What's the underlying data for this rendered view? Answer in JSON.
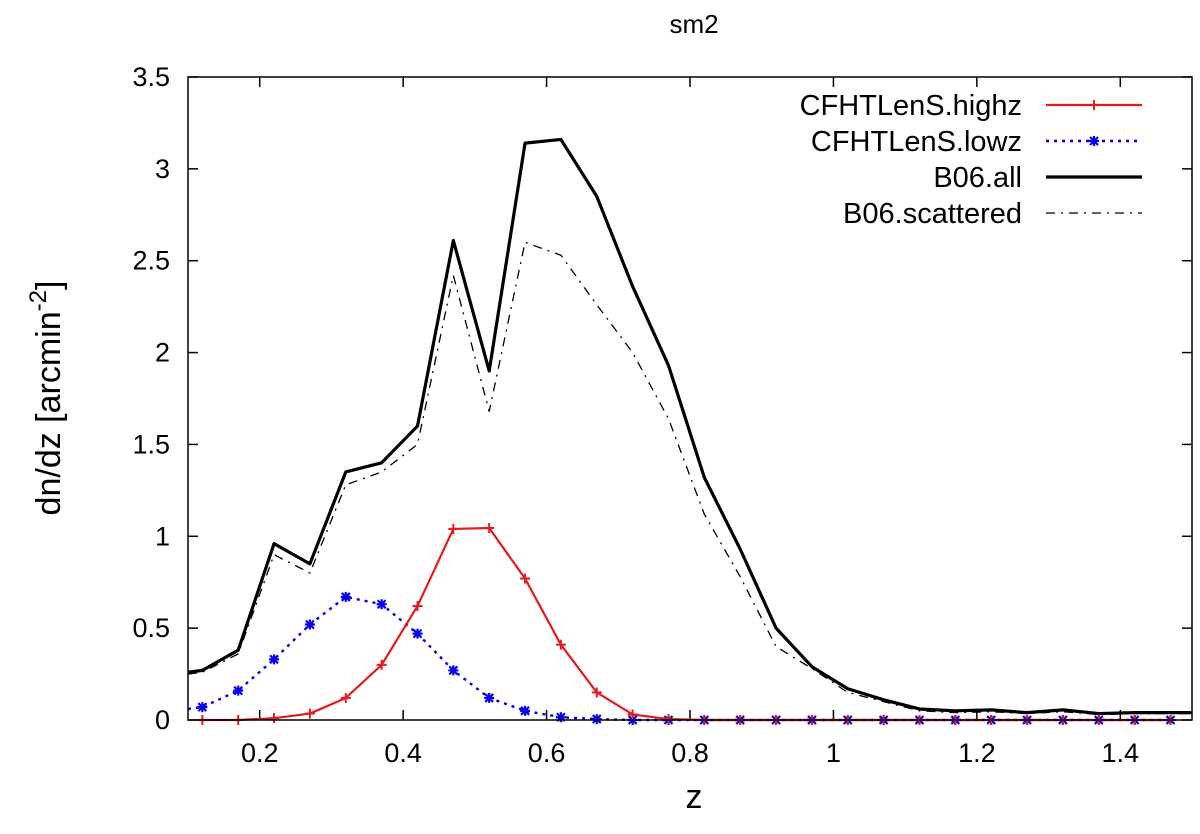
{
  "chart_data": {
    "type": "line",
    "title": "sm2",
    "xlabel": "z",
    "ylabel": "dn/dz [arcmin",
    "ylabel_superscript": "-2",
    "ylabel_suffix": "]",
    "xlim": [
      0.1,
      1.5
    ],
    "ylim": [
      0,
      3.5
    ],
    "xticks": [
      0.2,
      0.4,
      0.6,
      0.8,
      1,
      1.2,
      1.4
    ],
    "xtick_labels": [
      "0.2",
      "0.4",
      "0.6",
      "0.8",
      "1",
      "1.2",
      "1.4"
    ],
    "yticks": [
      0,
      0.5,
      1,
      1.5,
      2,
      2.5,
      3,
      3.5
    ],
    "ytick_labels": [
      "0",
      "0.5",
      "1",
      "1.5",
      "2",
      "2.5",
      "3",
      "3.5"
    ],
    "legend_position": "top-right",
    "series": [
      {
        "name": "CFHTLenS.highz",
        "color": "#e41a1c",
        "style": "solid",
        "marker": "plus",
        "x": [
          0.12,
          0.17,
          0.22,
          0.27,
          0.32,
          0.37,
          0.42,
          0.47,
          0.52,
          0.57,
          0.62,
          0.67,
          0.72,
          0.77,
          0.82,
          0.87,
          0.92,
          0.97,
          1.02,
          1.07,
          1.12,
          1.17,
          1.22,
          1.27,
          1.32,
          1.37,
          1.42,
          1.47
        ],
        "y": [
          0.0,
          0.0,
          0.01,
          0.035,
          0.12,
          0.3,
          0.62,
          1.04,
          1.045,
          0.77,
          0.41,
          0.15,
          0.03,
          0.005,
          0,
          0,
          0,
          0,
          0,
          0,
          0,
          0,
          0,
          0,
          0,
          0,
          0,
          0
        ]
      },
      {
        "name": "CFHTLenS.lowz",
        "color": "#0000ee",
        "style": "dotted",
        "marker": "star",
        "x": [
          0.12,
          0.17,
          0.22,
          0.27,
          0.32,
          0.37,
          0.42,
          0.47,
          0.52,
          0.57,
          0.62,
          0.67,
          0.72,
          0.77,
          0.82,
          0.87,
          0.92,
          0.97,
          1.02,
          1.07,
          1.12,
          1.17,
          1.22,
          1.27,
          1.32,
          1.37,
          1.42,
          1.47
        ],
        "y": [
          0.07,
          0.16,
          0.33,
          0.52,
          0.67,
          0.63,
          0.47,
          0.27,
          0.12,
          0.05,
          0.015,
          0.005,
          0,
          0,
          0,
          0,
          0,
          0,
          0,
          0,
          0,
          0,
          0,
          0,
          0,
          0,
          0,
          0
        ],
        "x_start": 0.1,
        "y_start": 0.06
      },
      {
        "name": "B06.all",
        "color": "#000000",
        "style": "solid-thick",
        "marker": "none",
        "x": [
          0.1,
          0.12,
          0.17,
          0.22,
          0.27,
          0.32,
          0.37,
          0.42,
          0.47,
          0.52,
          0.57,
          0.62,
          0.67,
          0.72,
          0.77,
          0.82,
          0.87,
          0.92,
          0.97,
          1.02,
          1.07,
          1.12,
          1.17,
          1.22,
          1.27,
          1.32,
          1.37,
          1.42,
          1.47,
          1.5
        ],
        "y": [
          0.26,
          0.27,
          0.38,
          0.96,
          0.85,
          1.35,
          1.4,
          1.6,
          2.61,
          1.9,
          3.14,
          3.16,
          2.85,
          2.36,
          1.93,
          1.32,
          0.93,
          0.5,
          0.29,
          0.17,
          0.11,
          0.06,
          0.05,
          0.055,
          0.04,
          0.055,
          0.035,
          0.04,
          0.04,
          0.04
        ]
      },
      {
        "name": "B06.scattered",
        "color": "#000000",
        "style": "dash-dot",
        "marker": "none",
        "x": [
          0.1,
          0.12,
          0.17,
          0.22,
          0.27,
          0.32,
          0.37,
          0.42,
          0.47,
          0.52,
          0.57,
          0.62,
          0.67,
          0.72,
          0.77,
          0.82,
          0.87,
          0.92,
          0.97,
          1.02,
          1.07,
          1.12,
          1.17,
          1.22,
          1.27,
          1.32,
          1.37,
          1.42,
          1.47,
          1.5
        ],
        "y": [
          0.25,
          0.26,
          0.36,
          0.9,
          0.8,
          1.28,
          1.35,
          1.5,
          2.42,
          1.68,
          2.6,
          2.53,
          2.26,
          2.0,
          1.64,
          1.12,
          0.78,
          0.4,
          0.28,
          0.15,
          0.1,
          0.05,
          0.04,
          0.045,
          0.035,
          0.045,
          0.03,
          0.035,
          0.035,
          0.035
        ]
      }
    ]
  }
}
